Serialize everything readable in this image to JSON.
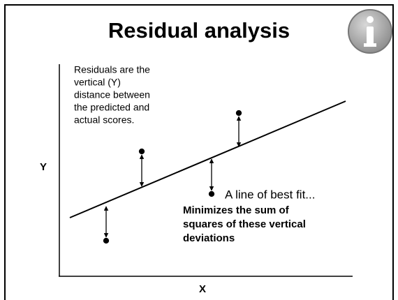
{
  "title": "Residual analysis",
  "axes": {
    "y_label": "Y",
    "x_label": "X"
  },
  "note": {
    "lines": [
      "Residuals are the",
      "vertical (Y)",
      "distance between",
      "the predicted and",
      "actual scores."
    ]
  },
  "fit_label": "A line of best fit...",
  "fit_note": {
    "lines": [
      "Minimizes the sum of",
      "squares of these vertical",
      "deviations"
    ]
  }
}
